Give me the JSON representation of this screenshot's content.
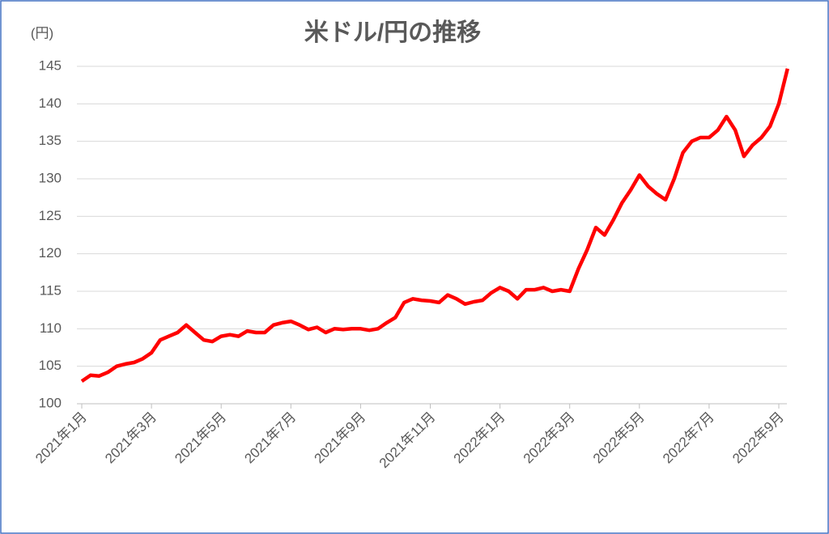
{
  "chart_data": {
    "type": "line",
    "title": "米ドル/円の推移",
    "y_label": "(円)",
    "categories": [
      "2021年1月",
      null,
      null,
      null,
      null,
      null,
      null,
      null,
      "2021年3月",
      null,
      null,
      null,
      null,
      null,
      null,
      null,
      "2021年5月",
      null,
      null,
      null,
      null,
      null,
      null,
      null,
      "2021年7月",
      null,
      null,
      null,
      null,
      null,
      null,
      null,
      "2021年9月",
      null,
      null,
      null,
      null,
      null,
      null,
      null,
      "2021年11月",
      null,
      null,
      null,
      null,
      null,
      null,
      null,
      "2022年1月",
      null,
      null,
      null,
      null,
      null,
      null,
      null,
      "2022年3月",
      null,
      null,
      null,
      null,
      null,
      null,
      null,
      "2022年5月",
      null,
      null,
      null,
      null,
      null,
      null,
      null,
      "2022年7月",
      null,
      null,
      null,
      null,
      null,
      null,
      null,
      "2022年9月",
      null
    ],
    "series": [
      {
        "name": "米ドル/円",
        "color": "#ff0000",
        "values": [
          103.0,
          103.8,
          103.7,
          104.2,
          105.0,
          105.3,
          105.5,
          106.0,
          106.8,
          108.5,
          109.0,
          109.5,
          110.5,
          109.5,
          108.5,
          108.3,
          109.0,
          109.2,
          109.0,
          109.7,
          109.5,
          109.5,
          110.5,
          110.8,
          111.0,
          110.5,
          109.9,
          110.2,
          109.5,
          110.0,
          109.9,
          110.0,
          110.0,
          109.8,
          110.0,
          110.8,
          111.5,
          113.5,
          114.0,
          113.8,
          113.7,
          113.5,
          114.5,
          114.0,
          113.3,
          113.6,
          113.8,
          114.8,
          115.5,
          115.0,
          114.0,
          115.2,
          115.2,
          115.5,
          115.0,
          115.2,
          115.0,
          118.0,
          120.5,
          123.5,
          122.5,
          124.5,
          126.8,
          128.5,
          130.5,
          129.0,
          128.0,
          127.2,
          130.0,
          133.5,
          135.0,
          135.5,
          135.5,
          136.5,
          138.3,
          136.5,
          133.0,
          134.5,
          135.5,
          137.0,
          140.0,
          144.7
        ]
      }
    ],
    "ylim": [
      100,
      145
    ],
    "yticks": [
      100,
      105,
      110,
      115,
      120,
      125,
      130,
      135,
      140,
      145
    ],
    "grid": true
  }
}
